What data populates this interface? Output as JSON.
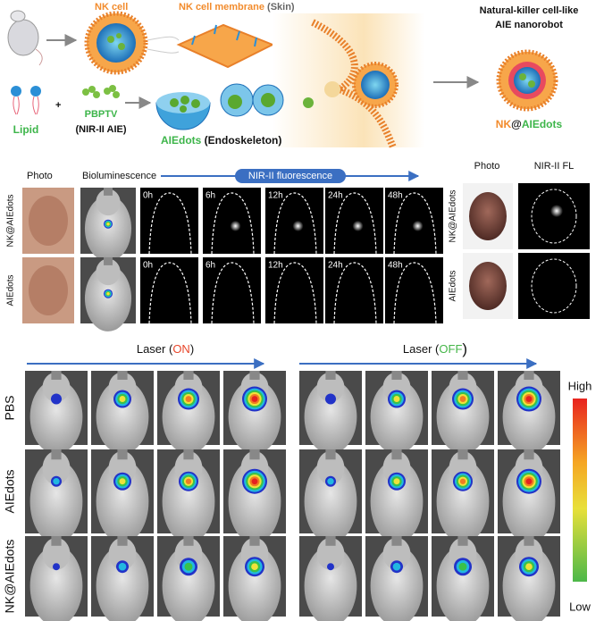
{
  "schematic": {
    "nk_cell": "NK cell",
    "membrane": [
      "NK cell membrane",
      " (Skin)"
    ],
    "nanorobot_title": [
      "Natural-killer cell-like",
      "AIE nanorobot"
    ],
    "lipid": "Lipid",
    "plus": "+",
    "pbptv": [
      "PBPTV",
      "(NIR-II AIE)"
    ],
    "aiedots": [
      "AIEdots",
      " (Endoskeleton)"
    ],
    "product": [
      "NK",
      "@",
      "AIEdots"
    ]
  },
  "imaging": {
    "photo": "Photo",
    "bioluminescence": "Bioluminescence",
    "arrow_label": "NIR-II fluorescence",
    "time_points": [
      "0h",
      "6h",
      "12h",
      "24h",
      "48h"
    ],
    "rows": [
      "NK@AIEdots",
      "AIEdots"
    ]
  },
  "organs": {
    "photo": "Photo",
    "fluorescence": "NIR-II FL",
    "rows": [
      "NK@AIEdots",
      "AIEdots"
    ]
  },
  "therapy": {
    "groups": [
      [
        "Laser (",
        "ON",
        ")"
      ],
      [
        "Laser (",
        "OFF",
        ")"
      ]
    ],
    "rows": [
      "PBS",
      "AIEdots",
      "NK@AIEdots"
    ],
    "colorbar": [
      "High",
      "Low"
    ]
  }
}
